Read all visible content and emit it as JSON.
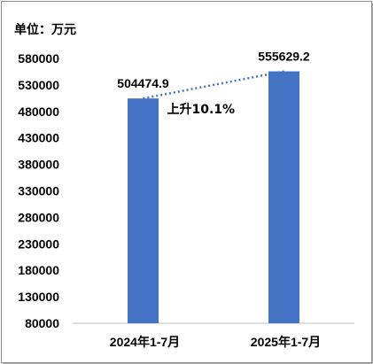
{
  "chart_data": {
    "type": "bar",
    "unit_label": "单位：万元",
    "categories": [
      "2024年1-7月",
      "2025年1-7月"
    ],
    "values": [
      504474.9,
      555629.2
    ],
    "data_labels": [
      "504474.9",
      "555629.2"
    ],
    "annotation": "上升10.1%",
    "ylim": [
      80000,
      580000
    ],
    "yticks": [
      80000,
      130000,
      180000,
      230000,
      280000,
      330000,
      380000,
      430000,
      480000,
      530000,
      580000
    ],
    "grid": false,
    "legend": "none",
    "colors": {
      "bar": "#4472c4",
      "trend_line": "#4472c4",
      "axis": "#bfbfbf"
    }
  }
}
